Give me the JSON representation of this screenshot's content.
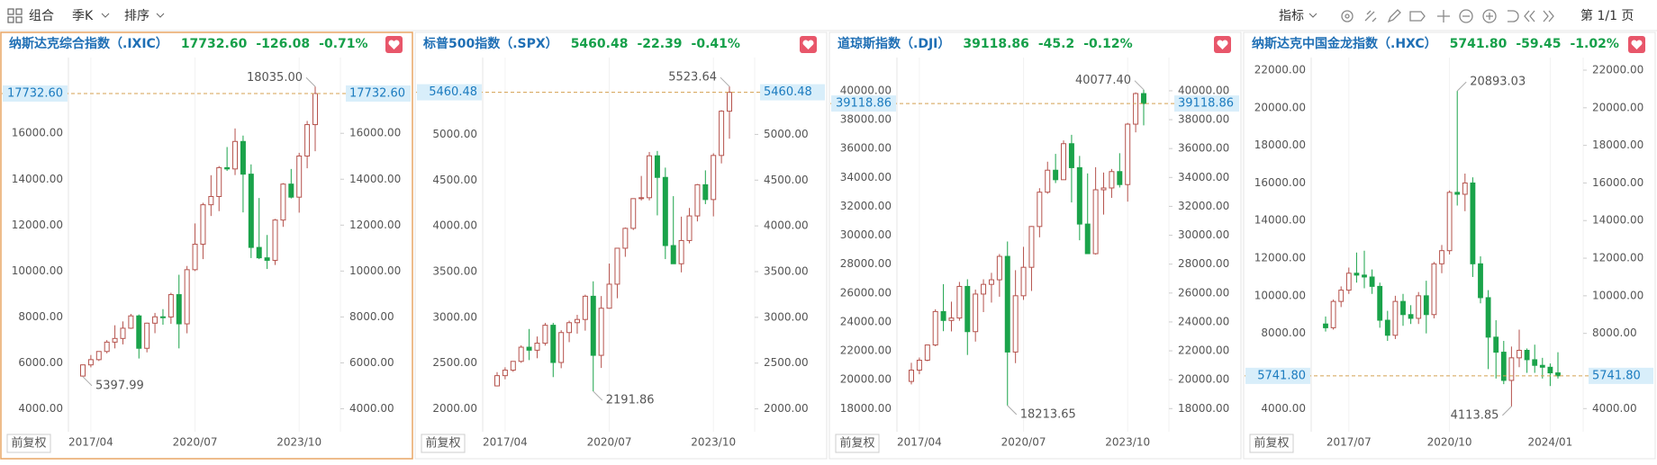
{
  "toolbar": {
    "items": [
      "组合",
      "季K",
      "排序"
    ],
    "indicator": "指标",
    "page": "第 1/1 页"
  },
  "chart_data": [
    {
      "type": "candlestick",
      "title": "纳斯达克综合指数（.IXIC）",
      "highlighted": true,
      "last": {
        "value": 17732.6,
        "label": "17732.60"
      },
      "change": -126.08,
      "change_pct": "-0.71%",
      "button": "前复权",
      "up_color": "#b5524c",
      "down_color": "#1aa34a",
      "change_color": "#16a04a",
      "categories": [
        null,
        "2017/04",
        null,
        null,
        null,
        null,
        null,
        null,
        null,
        null,
        null,
        null,
        null,
        null,
        "2020/07",
        null,
        null,
        null,
        null,
        null,
        null,
        null,
        null,
        null,
        null,
        null,
        null,
        "2023/10",
        null,
        null
      ],
      "open": [
        5425,
        5912,
        6140,
        6496,
        6903,
        7063,
        7510,
        8046,
        6635,
        7729,
        8006,
        7999,
        8973,
        7700,
        10059,
        11168,
        12888,
        13247,
        14504,
        14448,
        15645,
        14221,
        11029,
        10576,
        10466,
        12222,
        13788,
        13219,
        15011,
        16379
      ],
      "high": [
        5928,
        6342,
        6495,
        6993,
        7637,
        7806,
        8133,
        8107,
        7750,
        8176,
        8340,
        9052,
        9838,
        10221,
        12074,
        12973,
        14175,
        14572,
        15403,
        16212,
        15901,
        14646,
        13181,
        11571,
        12269,
        13829,
        14447,
        15150,
        16539,
        18035
      ],
      "low": [
        5397.99,
        5805,
        6081,
        6414,
        6631,
        6805,
        7479,
        6190,
        6457,
        7292,
        7662,
        7700,
        6631,
        7288,
        10000,
        10519,
        12397,
        12609,
        14361,
        14181,
        12555,
        10565,
        10519,
        10089,
        10265,
        11925,
        13161,
        12544,
        14477,
        15222
      ],
      "close": [
        5912,
        6140,
        6496,
        6903,
        7063,
        7510,
        8046,
        6635,
        7729,
        8006,
        7999,
        8973,
        7700,
        10059,
        11168,
        12888,
        13247,
        14504,
        14448,
        15645,
        14221,
        11029,
        10576,
        10466,
        12222,
        13788,
        13219,
        15011,
        16379,
        17732.6
      ],
      "max": {
        "value": 18035,
        "label": "18035.00"
      },
      "min": {
        "value": 5397.99,
        "label": "5397.99"
      },
      "ylim": [
        3000,
        19300
      ],
      "yticks": [
        {
          "value": 4000,
          "label": "4000.00"
        },
        {
          "value": 6000,
          "label": "6000.00"
        },
        {
          "value": 8000,
          "label": "8000.00"
        },
        {
          "value": 10000,
          "label": "10000.00"
        },
        {
          "value": 12000,
          "label": "12000.00"
        },
        {
          "value": 14000,
          "label": "14000.00"
        },
        {
          "value": 16000,
          "label": "16000.00"
        }
      ]
    },
    {
      "type": "candlestick",
      "title": "标普500指数（.SPX）",
      "last": {
        "value": 5460.48,
        "label": "5460.48"
      },
      "change": -22.39,
      "change_pct": "-0.41%",
      "button": "前复权",
      "up_color": "#b5524c",
      "down_color": "#1aa34a",
      "change_color": "#16a04a",
      "categories": [
        null,
        "2017/04",
        null,
        null,
        null,
        null,
        null,
        null,
        null,
        null,
        null,
        null,
        null,
        null,
        "2020/07",
        null,
        null,
        null,
        null,
        null,
        null,
        null,
        null,
        null,
        null,
        null,
        null,
        "2023/10",
        null,
        null
      ],
      "open": [
        2251,
        2363,
        2423,
        2519,
        2674,
        2641,
        2718,
        2914,
        2507,
        2834,
        2942,
        2977,
        3231,
        2585,
        3100,
        3363,
        3756,
        3973,
        4298,
        4308,
        4766,
        4530,
        3785,
        3586,
        3840,
        4109,
        4450,
        4288,
        4770,
        5254
      ],
      "high": [
        2401,
        2454,
        2519,
        2694,
        2873,
        2791,
        2940,
        2940,
        2860,
        2964,
        3028,
        3248,
        3394,
        3233,
        3588,
        3760,
        3983,
        4302,
        4546,
        4808,
        4819,
        4637,
        4325,
        4101,
        4196,
        4458,
        4607,
        4794,
        5265,
        5523.64
      ],
      "low": [
        2245,
        2323,
        2405,
        2503,
        2533,
        2553,
        2691,
        2347,
        2444,
        2729,
        2822,
        2855,
        2191.86,
        2447,
        3095,
        3209,
        3662,
        3955,
        4278,
        4279,
        4115,
        3637,
        3585,
        3492,
        3809,
        4049,
        4238,
        4104,
        4683,
        4953
      ],
      "close": [
        2363,
        2423,
        2519,
        2674,
        2641,
        2718,
        2914,
        2507,
        2834,
        2942,
        2977,
        3231,
        2585,
        3100,
        3363,
        3756,
        3973,
        4298,
        4308,
        4766,
        4530,
        3785,
        3586,
        3840,
        4109,
        4450,
        4288,
        4770,
        5254,
        5460.48
      ],
      "max": {
        "value": 5523.64,
        "label": "5523.64"
      },
      "min": {
        "value": 2191.86,
        "label": "2191.86"
      },
      "ylim": [
        1750,
        5840
      ],
      "yticks": [
        {
          "value": 2000,
          "label": "2000.00"
        },
        {
          "value": 2500,
          "label": "2500.00"
        },
        {
          "value": 3000,
          "label": "3000.00"
        },
        {
          "value": 3500,
          "label": "3500.00"
        },
        {
          "value": 4000,
          "label": "4000.00"
        },
        {
          "value": 4500,
          "label": "4500.00"
        },
        {
          "value": 5000,
          "label": "5000.00"
        }
      ]
    },
    {
      "type": "candlestick",
      "title": "道琼斯指数（.DJI）",
      "last": {
        "value": 39118.86,
        "label": "39118.86"
      },
      "change": -45.2,
      "change_pct": "-0.12%",
      "button": "前复权",
      "up_color": "#b5524c",
      "down_color": "#1aa34a",
      "change_color": "#16a04a",
      "categories": [
        null,
        "2017/04",
        null,
        null,
        null,
        null,
        null,
        null,
        null,
        null,
        null,
        null,
        null,
        null,
        "2020/07",
        null,
        null,
        null,
        null,
        null,
        null,
        null,
        null,
        null,
        null,
        null,
        null,
        "2023/10",
        null,
        null
      ],
      "open": [
        19881,
        20663,
        21350,
        22405,
        24719,
        24103,
        24271,
        26458,
        23327,
        25929,
        26600,
        26917,
        28538,
        21917,
        25813,
        27782,
        30606,
        32982,
        34503,
        33844,
        36338,
        34678,
        30775,
        28726,
        33147,
        33274,
        34408,
        33508,
        37690,
        39807
      ],
      "high": [
        21169,
        21535,
        22420,
        24876,
        26617,
        25403,
        26769,
        26952,
        26241,
        26952,
        27399,
        28701,
        29569,
        27581,
        29199,
        30637,
        33259,
        35092,
        35632,
        36565,
        36953,
        35492,
        34281,
        34712,
        34342,
        34589,
        35679,
        37778,
        39889,
        40077.4
      ],
      "low": [
        19678,
        20380,
        21279,
        22317,
        23360,
        23344,
        24084,
        21713,
        22639,
        24680,
        25339,
        25744,
        18213.65,
        21148,
        25524,
        26144,
        29857,
        32872,
        33613,
        33914,
        32272,
        29653,
        28715,
        28661,
        31430,
        32587,
        33306,
        32327,
        37123,
        37611
      ],
      "close": [
        20663,
        21350,
        22405,
        24719,
        24103,
        24271,
        26458,
        23327,
        25929,
        26600,
        26917,
        28538,
        21917,
        25813,
        27782,
        30606,
        32982,
        34503,
        33844,
        36338,
        34678,
        30775,
        28726,
        33147,
        33274,
        34408,
        33508,
        37690,
        39807,
        39118.86
      ],
      "max": {
        "value": 40077.4,
        "label": "40077.40"
      },
      "min": {
        "value": 18213.65,
        "label": "18213.65"
      },
      "ylim": [
        16400,
        42300
      ],
      "yticks": [
        {
          "value": 18000,
          "label": "18000.00"
        },
        {
          "value": 20000,
          "label": "20000.00"
        },
        {
          "value": 22000,
          "label": "22000.00"
        },
        {
          "value": 24000,
          "label": "24000.00"
        },
        {
          "value": 26000,
          "label": "26000.00"
        },
        {
          "value": 28000,
          "label": "28000.00"
        },
        {
          "value": 30000,
          "label": "30000.00"
        },
        {
          "value": 32000,
          "label": "32000.00"
        },
        {
          "value": 34000,
          "label": "34000.00"
        },
        {
          "value": 36000,
          "label": "36000.00"
        },
        {
          "value": 38000,
          "label": "38000.00"
        },
        {
          "value": 40000,
          "label": "40000.00"
        }
      ]
    },
    {
      "type": "candlestick",
      "title": "纳斯达克中国金龙指数（.HXC）",
      "last": {
        "value": 5741.8,
        "label": "5741.80"
      },
      "change": -59.45,
      "change_pct": "-1.02%",
      "button": "前复权",
      "up_color": "#b5524c",
      "down_color": "#1aa34a",
      "change_color": "#16a04a",
      "categories": [
        null,
        null,
        null,
        "2017/07",
        null,
        null,
        null,
        null,
        null,
        null,
        null,
        null,
        null,
        null,
        null,
        null,
        "2020/10",
        null,
        null,
        null,
        null,
        null,
        null,
        null,
        null,
        null,
        null,
        null,
        null,
        "2024/01",
        null
      ],
      "open": [
        8500,
        8300,
        9700,
        10300,
        11200,
        11100,
        11000,
        10500,
        8700,
        7900,
        9700,
        9000,
        8800,
        10000,
        9000,
        11700,
        12400,
        15500,
        15400,
        16000,
        11700,
        9900,
        7800,
        7000,
        5500,
        6700,
        7100,
        6600,
        6300,
        6200,
        5900
      ],
      "high": [
        8900,
        9800,
        10500,
        11500,
        12300,
        12400,
        11400,
        10700,
        9200,
        10000,
        10100,
        9500,
        10200,
        10800,
        11800,
        12700,
        15600,
        20893.03,
        16500,
        16300,
        12100,
        10300,
        8700,
        7600,
        7300,
        8200,
        7200,
        7400,
        6700,
        6400,
        7000
      ],
      "low": [
        8100,
        8200,
        9400,
        10100,
        10700,
        10400,
        10100,
        8300,
        7600,
        7700,
        8400,
        8500,
        8500,
        8000,
        8800,
        11200,
        12200,
        14800,
        14500,
        11000,
        9600,
        6100,
        5600,
        5300,
        4113.85,
        6200,
        5900,
        5900,
        5600,
        5200,
        5600
      ],
      "close": [
        8300,
        9700,
        10300,
        11200,
        11100,
        11000,
        10500,
        8700,
        7900,
        9700,
        9000,
        8800,
        10000,
        9000,
        11700,
        12400,
        15500,
        15400,
        16000,
        11700,
        9900,
        7800,
        7000,
        5500,
        6700,
        7100,
        6600,
        6300,
        6200,
        5900,
        5741.8
      ],
      "max": {
        "value": 20893.03,
        "label": "20893.03"
      },
      "min": {
        "value": 4113.85,
        "label": "4113.85"
      },
      "ylim": [
        2770,
        22670
      ],
      "yticks": [
        {
          "value": 4000,
          "label": "4000.00"
        },
        {
          "value": 8000,
          "label": "8000.00"
        },
        {
          "value": 10000,
          "label": "10000.00"
        },
        {
          "value": 12000,
          "label": "12000.00"
        },
        {
          "value": 14000,
          "label": "14000.00"
        },
        {
          "value": 16000,
          "label": "16000.00"
        },
        {
          "value": 18000,
          "label": "18000.00"
        },
        {
          "value": 20000,
          "label": "20000.00"
        },
        {
          "value": 22000,
          "label": "22000.00"
        }
      ]
    }
  ]
}
